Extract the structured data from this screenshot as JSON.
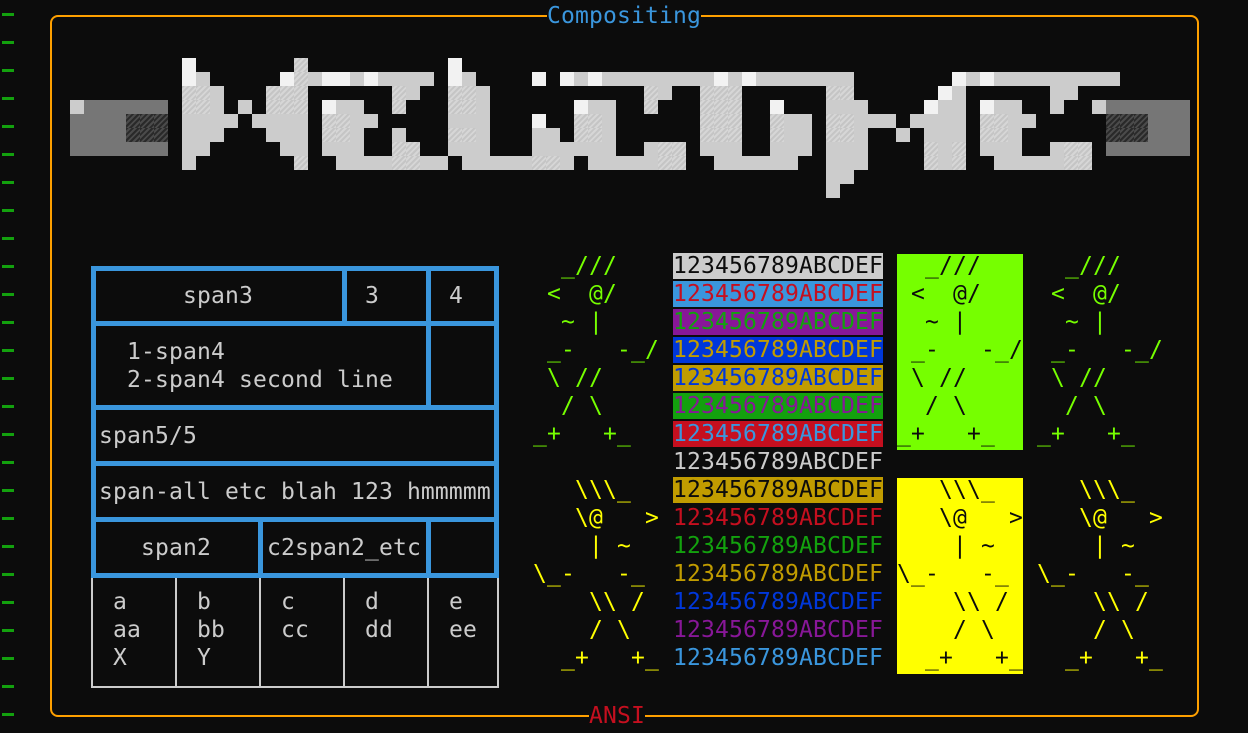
{
  "frame": {
    "title": "Compositing",
    "subtitle": "ANSI",
    "border_color": "#ffa000",
    "title_color": "#3a96dd",
    "subtitle_color": "#c50f1f"
  },
  "gutter": {
    "marker": "-",
    "count": 26,
    "color": "#13a10e"
  },
  "banner": {
    "description_colors": {
      "white": "#f2f2f2",
      "light": "#cccccc",
      "hatch": "#d6d6d6",
      "gray": "#767676",
      "dark": "#4a4a4a"
    }
  },
  "table": {
    "row1": {
      "c1": "span3",
      "c2": "3",
      "c3": "4"
    },
    "row2": {
      "line1": "1-span4",
      "line2": "2-span4 second line"
    },
    "row3": {
      "c1": "span5/5"
    },
    "row4": {
      "c1": "span-all etc blah 123 hmmmmm"
    },
    "row5": {
      "c1": "span2",
      "c2": "c2span2_etc"
    },
    "row6": [
      [
        "a",
        "aa",
        "X"
      ],
      [
        "b",
        "bb",
        "Y"
      ],
      [
        "c",
        "cc",
        ""
      ],
      [
        "d",
        "dd",
        ""
      ],
      [
        "e",
        "ee",
        ""
      ]
    ]
  },
  "art": {
    "green_color": "#76ff00",
    "yellow_color": "#ffff00",
    "green_figure": [
      "  _///",
      " <  @/",
      "  ~ |",
      " _-   -_/",
      " \\ //",
      "  / \\",
      "_+   +_"
    ],
    "yellow_figure": [
      "   \\\\\\_",
      "   \\@   >",
      "    | ~",
      "\\_-   -_",
      "    \\\\ /",
      "    / \\",
      "  _+   +_"
    ]
  },
  "color_strips": {
    "text": "123456789ABCDEF",
    "rows": [
      {
        "bg": "#cccccc",
        "fg": "#0c0c0c"
      },
      {
        "bg": "#3a96dd",
        "fg": "#c50f1f"
      },
      {
        "bg": "#881798",
        "fg": "#13a10e"
      },
      {
        "bg": "#0037da",
        "fg": "#c19c00"
      },
      {
        "bg": "#c19c00",
        "fg": "#0037da"
      },
      {
        "bg": "#13a10e",
        "fg": "#881798"
      },
      {
        "bg": "#c50f1f",
        "fg": "#3a96dd"
      },
      {
        "bg": "",
        "fg": "#cccccc"
      },
      {
        "bg": "#c19c00",
        "fg": "#0c0c0c"
      },
      {
        "bg": "",
        "fg": "#c50f1f"
      },
      {
        "bg": "",
        "fg": "#13a10e"
      },
      {
        "bg": "",
        "fg": "#c19c00"
      },
      {
        "bg": "",
        "fg": "#0037da"
      },
      {
        "bg": "",
        "fg": "#881798"
      },
      {
        "bg": "",
        "fg": "#3a96dd"
      }
    ]
  }
}
